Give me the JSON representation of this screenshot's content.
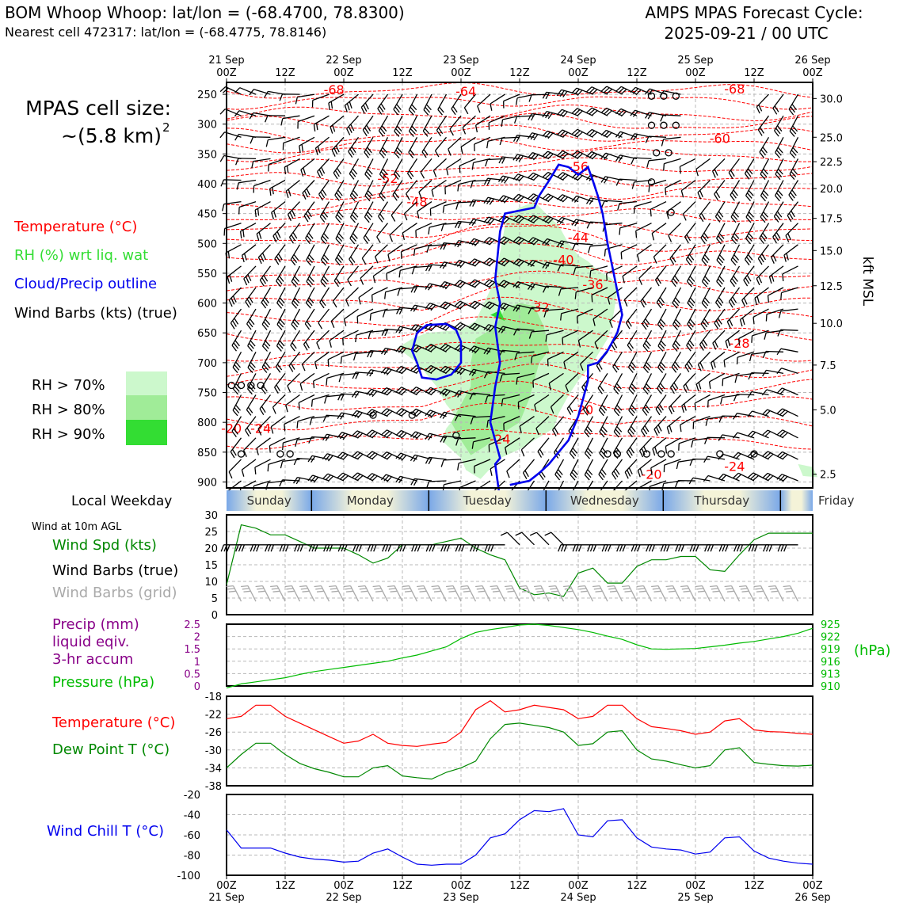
{
  "header": {
    "station_title": "BOM Whoop Whoop: lat/lon = (-68.4700, 78.8300)",
    "nearest_cell": "Nearest cell 472317: lat/lon = (-68.4775, 78.8146)",
    "forecast_title": "AMPS MPAS Forecast Cycle:",
    "forecast_cycle": "2025-09-21 / 00 UTC"
  },
  "cell_size": {
    "line1": "MPAS cell size:",
    "line2": "~(5.8 km)",
    "superscript": "2"
  },
  "legend": {
    "temperature": "Temperature (°C)",
    "rh": "RH (%) wrt liq. wat",
    "cloud": "Cloud/Precip outline",
    "barbs": "Wind Barbs (kts) (true)",
    "rh70": "RH > 70%",
    "rh80": "RH > 80%",
    "rh90": "RH > 90%"
  },
  "colors": {
    "temperature": "#ff0000",
    "rh_label": "#33dd33",
    "cloud": "#0000ee",
    "rh70": "#ccf8cc",
    "rh80": "#a0ec98",
    "rh90": "#33dd33",
    "pressure": "#00bb00",
    "dewpoint": "#008800",
    "precip": "#880088",
    "windchill": "#0000ee",
    "wind_speed": "#008800",
    "grid_barbs": "#aaaaaa"
  },
  "time_axis": {
    "top_ticks": [
      {
        "label": "00Z",
        "date": "21 Sep"
      },
      {
        "label": "12Z",
        "date": ""
      },
      {
        "label": "00Z",
        "date": "22 Sep"
      },
      {
        "label": "12Z",
        "date": ""
      },
      {
        "label": "00Z",
        "date": "23 Sep"
      },
      {
        "label": "12Z",
        "date": ""
      },
      {
        "label": "00Z",
        "date": "24 Sep"
      },
      {
        "label": "12Z",
        "date": ""
      },
      {
        "label": "00Z",
        "date": "25 Sep"
      },
      {
        "label": "12Z",
        "date": ""
      },
      {
        "label": "00Z",
        "date": "26 Sep"
      }
    ]
  },
  "weekday_bar": {
    "label": "Local Weekday",
    "days": [
      "Sunday",
      "Monday",
      "Tuesday",
      "Wednesday",
      "Thursday",
      "Friday"
    ]
  },
  "chart_data": [
    {
      "type": "heatmap",
      "name": "vertical-section",
      "x_hours": [
        0,
        120
      ],
      "y_pressure_ticks": [
        250,
        300,
        350,
        400,
        450,
        500,
        550,
        600,
        650,
        700,
        750,
        800,
        850,
        900
      ],
      "right_height_ticks": [
        {
          "p": 257,
          "kft": "30.0"
        },
        {
          "p": 322,
          "kft": "25.0"
        },
        {
          "p": 363,
          "kft": "22.5"
        },
        {
          "p": 408,
          "kft": "20.0"
        },
        {
          "p": 458,
          "kft": "17.5"
        },
        {
          "p": 512,
          "kft": "15.0"
        },
        {
          "p": 571,
          "kft": "12.5"
        },
        {
          "p": 634,
          "kft": "10.0"
        },
        {
          "p": 704,
          "kft": "7.5"
        },
        {
          "p": 779,
          "kft": "5.0"
        },
        {
          "p": 887,
          "kft": "2.5"
        }
      ],
      "right_axis_label": "kft MSL",
      "temperature_labels": [
        {
          "h": 22,
          "p": 243,
          "text": "-68"
        },
        {
          "h": 49,
          "p": 246,
          "text": "-64"
        },
        {
          "h": 104,
          "p": 242,
          "text": "-68"
        },
        {
          "h": 101,
          "p": 325,
          "text": "-60"
        },
        {
          "h": 72,
          "p": 372,
          "text": "-56"
        },
        {
          "h": 33,
          "p": 392,
          "text": "-52"
        },
        {
          "h": 39,
          "p": 431,
          "text": "-48"
        },
        {
          "h": 72,
          "p": 491,
          "text": "-44"
        },
        {
          "h": 69,
          "p": 528,
          "text": "-40"
        },
        {
          "h": 75,
          "p": 570,
          "text": "-36"
        },
        {
          "h": 64,
          "p": 608,
          "text": "-32"
        },
        {
          "h": 105,
          "p": 668,
          "text": "-28"
        },
        {
          "h": 73,
          "p": 780,
          "text": "-20"
        },
        {
          "h": 1,
          "p": 811,
          "text": "-20"
        },
        {
          "h": 7,
          "p": 811,
          "text": "-24"
        },
        {
          "h": 56,
          "p": 829,
          "text": "-24"
        },
        {
          "h": 104,
          "p": 875,
          "text": "-24"
        },
        {
          "h": 87,
          "p": 888,
          "text": "-20"
        }
      ]
    },
    {
      "type": "line",
      "name": "wind-speed",
      "yticks": [
        0,
        5,
        10,
        15,
        20,
        25,
        30
      ],
      "ylim": [
        0,
        30
      ],
      "x_hours": [
        0,
        3,
        6,
        9,
        12,
        15,
        18,
        21,
        24,
        27,
        30,
        33,
        36,
        39,
        42,
        45,
        48,
        51,
        54,
        57,
        60,
        63,
        66,
        69,
        72,
        75,
        78,
        81,
        84,
        87,
        90,
        93,
        96,
        99,
        102,
        105,
        108,
        111,
        114,
        117,
        120
      ],
      "values": [
        9,
        27,
        26,
        24,
        24,
        22,
        20,
        20,
        20,
        18,
        15.5,
        17,
        21,
        21,
        21,
        22,
        23,
        20,
        18,
        16.5,
        8,
        6,
        6.5,
        5.5,
        12.5,
        14,
        9.5,
        9.5,
        14.5,
        16.5,
        16.5,
        17.5,
        17.5,
        13.5,
        13,
        18,
        22.5,
        24.5,
        24.5,
        24.5,
        24.5
      ]
    },
    {
      "type": "line",
      "name": "pressure",
      "yticks": [
        910,
        913,
        916,
        919,
        922,
        925
      ],
      "ylim": [
        910,
        925
      ],
      "x_hours": [
        0,
        3,
        6,
        9,
        12,
        15,
        18,
        21,
        24,
        27,
        30,
        33,
        36,
        39,
        42,
        45,
        48,
        51,
        54,
        57,
        60,
        63,
        66,
        69,
        72,
        75,
        78,
        81,
        84,
        87,
        90,
        93,
        96,
        99,
        102,
        105,
        108,
        111,
        114,
        117,
        120
      ],
      "values": [
        909.5,
        910.5,
        911,
        911.5,
        912,
        912.8,
        913.5,
        914,
        914.5,
        915,
        915.5,
        916,
        916.8,
        917.5,
        918.5,
        919.5,
        921.5,
        923,
        923.7,
        924.2,
        924.8,
        925,
        924.7,
        924.2,
        923.7,
        923,
        922.1,
        921.3,
        920,
        919,
        918.9,
        919,
        919.1,
        919.5,
        919.9,
        920.4,
        920.8,
        921.4,
        922,
        922.8,
        924
      ]
    },
    {
      "type": "line",
      "name": "precip",
      "yticks": [
        0,
        0.5,
        1.0,
        1.5,
        2.0,
        2.5
      ],
      "ylim": [
        0,
        2.5
      ],
      "x_hours": [],
      "values": []
    },
    {
      "type": "line",
      "name": "temperature-dewpoint",
      "yticks": [
        -18,
        -22,
        -26,
        -30,
        -34,
        -38
      ],
      "ylim": [
        -38,
        -18
      ],
      "x_hours": [
        0,
        3,
        6,
        9,
        12,
        15,
        18,
        21,
        24,
        27,
        30,
        33,
        36,
        39,
        42,
        45,
        48,
        51,
        54,
        57,
        60,
        63,
        66,
        69,
        72,
        75,
        78,
        81,
        84,
        87,
        90,
        93,
        96,
        99,
        102,
        105,
        108,
        111,
        114,
        117,
        120
      ],
      "series": [
        {
          "key": "temperature",
          "values": [
            -23,
            -22.5,
            -20,
            -20,
            -22.5,
            -24,
            -25.5,
            -27,
            -28.5,
            -28,
            -26.5,
            -28.5,
            -29,
            -29.2,
            -28.7,
            -28.3,
            -26,
            -21,
            -19,
            -21.5,
            -21,
            -20,
            -20.5,
            -21,
            -23,
            -22.5,
            -20,
            -20,
            -23,
            -24.8,
            -25.2,
            -25.7,
            -26.5,
            -26,
            -23.5,
            -23,
            -25.5,
            -25.9,
            -26,
            -26.3,
            -26.5
          ]
        },
        {
          "key": "dewpoint",
          "values": [
            -34,
            -31,
            -28.5,
            -28.5,
            -31,
            -33,
            -34.2,
            -35,
            -36,
            -36,
            -34,
            -33.5,
            -35.8,
            -36.2,
            -36.5,
            -35,
            -34,
            -32.5,
            -27.5,
            -24.3,
            -24,
            -24.5,
            -25,
            -26,
            -29,
            -28.6,
            -26,
            -25.7,
            -30,
            -32,
            -32.5,
            -33.3,
            -34,
            -33.5,
            -30,
            -29.5,
            -32.8,
            -33.2,
            -33.5,
            -33.6,
            -33.4
          ]
        }
      ]
    },
    {
      "type": "line",
      "name": "wind-chill",
      "yticks": [
        -20,
        -40,
        -60,
        -80,
        -100
      ],
      "ylim": [
        -100,
        -20
      ],
      "x_hours": [
        0,
        3,
        6,
        9,
        12,
        15,
        18,
        21,
        24,
        27,
        30,
        33,
        36,
        39,
        42,
        45,
        48,
        51,
        54,
        57,
        60,
        63,
        66,
        69,
        72,
        75,
        78,
        81,
        84,
        87,
        90,
        93,
        96,
        99,
        102,
        105,
        108,
        111,
        114,
        117,
        120
      ],
      "values": [
        -55,
        -73,
        -73,
        -73,
        -78,
        -82,
        -84,
        -85,
        -87,
        -86,
        -78,
        -74,
        -82,
        -89,
        -90,
        -89,
        -89,
        -80,
        -63,
        -59,
        -45,
        -36,
        -37,
        -34,
        -60,
        -62,
        -46,
        -45,
        -63,
        -72,
        -74,
        -75,
        -79,
        -77,
        -63,
        -62,
        -76,
        -83,
        -86,
        -88,
        -89
      ]
    }
  ],
  "panels": {
    "wind_panel_title": "Wind at 10m AGL",
    "wind_speed": "Wind Spd (kts)",
    "wind_barbs_true": "Wind Barbs (true)",
    "wind_barbs_grid": "Wind Barbs (grid)",
    "precip_line1": "Precip (mm)",
    "precip_line2": "liquid eqiv.",
    "precip_line3": "3-hr accum",
    "pressure": "Pressure (hPa)",
    "pressure_unit": "(hPa)",
    "temperature": "Temperature (°C)",
    "dewpoint": "Dew Point T (°C)",
    "windchill": "Wind Chill T (°C)"
  }
}
